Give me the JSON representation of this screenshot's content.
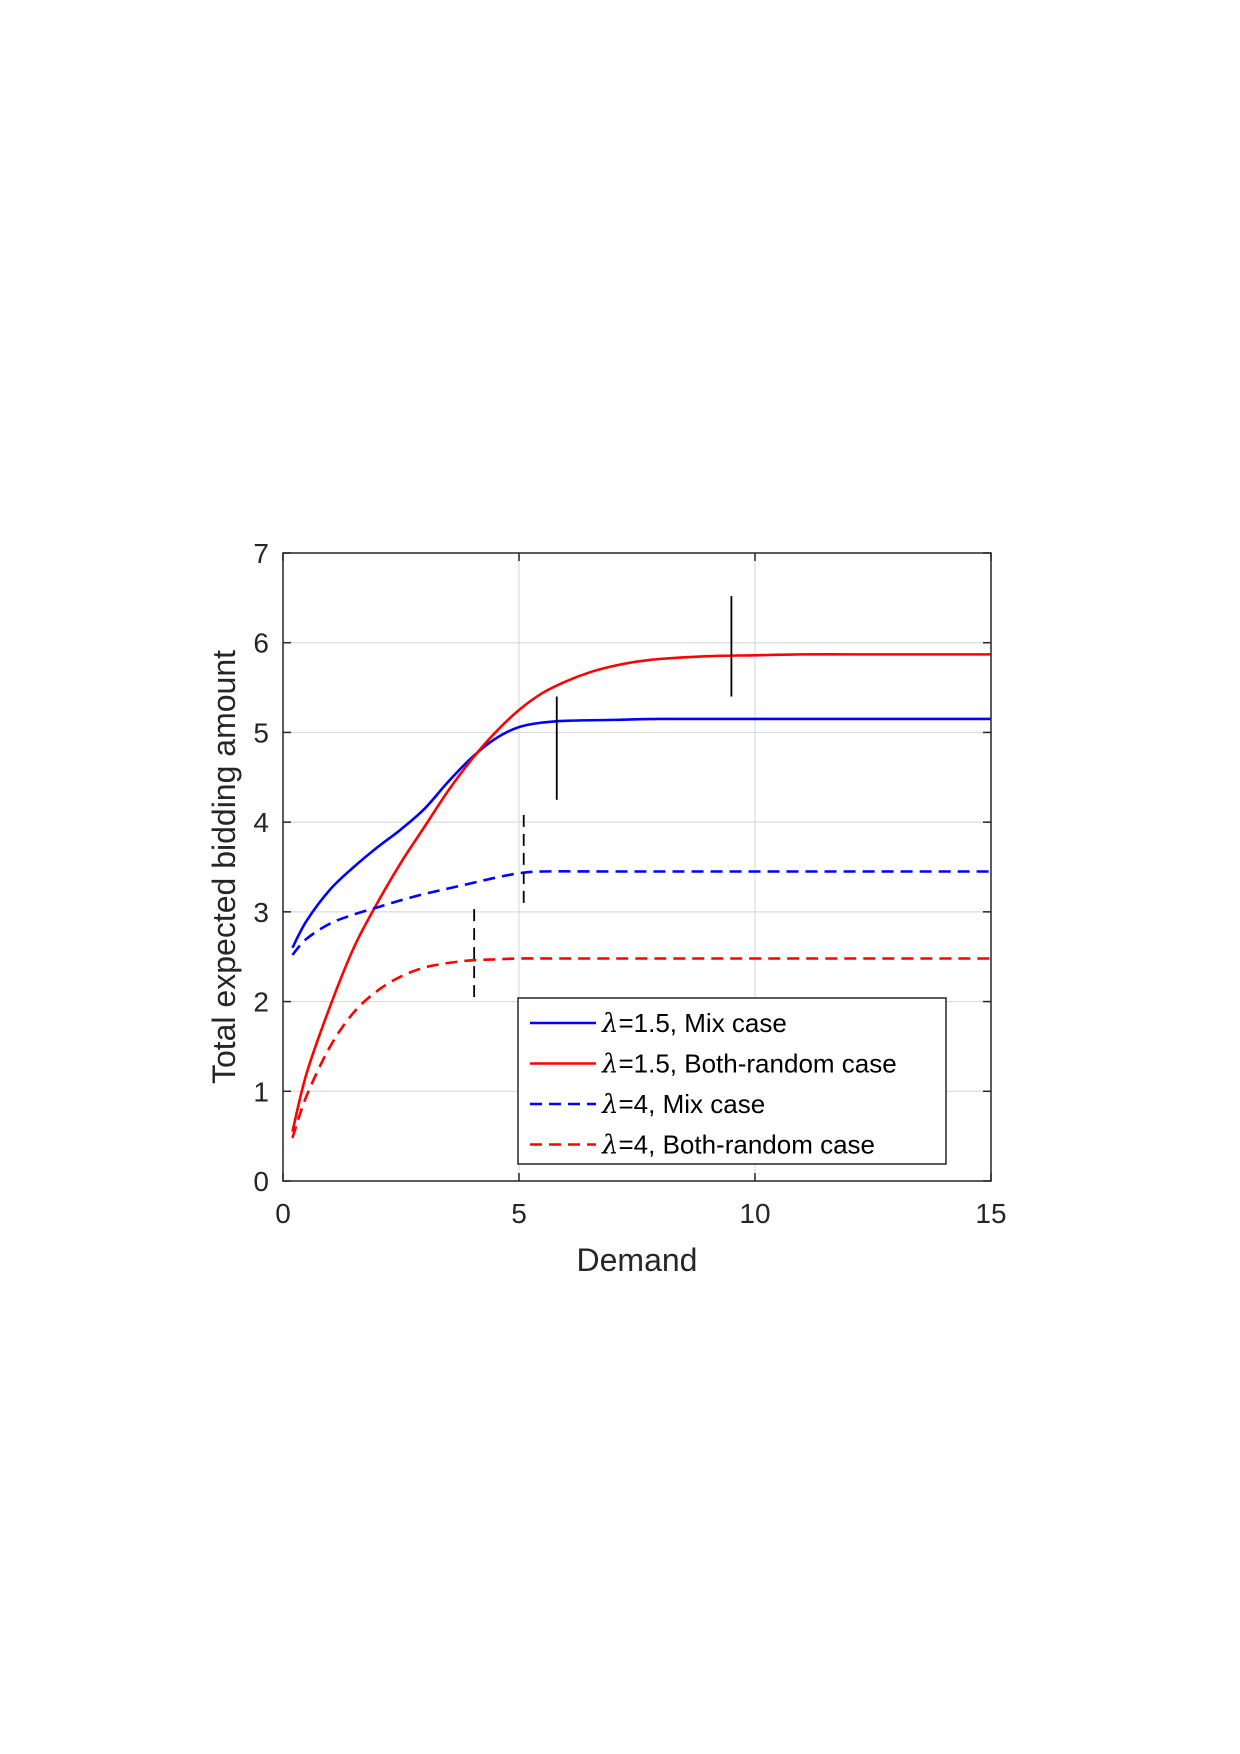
{
  "chart_data": {
    "type": "line",
    "title": "",
    "xlabel": "Demand",
    "ylabel": "Total expected bidding amount",
    "xlim": [
      0,
      15
    ],
    "ylim": [
      0,
      7
    ],
    "xticks": [
      0,
      5,
      10,
      15
    ],
    "yticks": [
      0,
      1,
      2,
      3,
      4,
      5,
      6,
      7
    ],
    "grid": true,
    "legend_position": "bottom-right",
    "series": [
      {
        "name": "λ=1.5,  Mix case",
        "lambda_symbol": "λ",
        "label_rest": "=1.5,  Mix case",
        "color": "#0000ff",
        "style": "solid",
        "x": [
          0.2,
          0.5,
          1.0,
          1.5,
          2.0,
          2.5,
          3.0,
          3.5,
          4.0,
          4.5,
          5.0,
          5.5,
          6.0,
          7.0,
          8.0,
          10.0,
          12.0,
          15.0
        ],
        "y": [
          2.6,
          2.9,
          3.25,
          3.5,
          3.72,
          3.92,
          4.15,
          4.45,
          4.72,
          4.93,
          5.06,
          5.11,
          5.13,
          5.14,
          5.15,
          5.15,
          5.15,
          5.15
        ]
      },
      {
        "name": "λ=1.5, Both-random case",
        "lambda_symbol": "λ",
        "label_rest": "=1.5, Both-random case",
        "color": "#ff0000",
        "style": "solid",
        "x": [
          0.2,
          0.5,
          1.0,
          1.5,
          2.0,
          2.5,
          3.0,
          3.5,
          4.0,
          4.5,
          5.0,
          5.5,
          6.0,
          6.5,
          7.0,
          7.5,
          8.0,
          9.0,
          10.0,
          11.0,
          12.0,
          13.0,
          15.0
        ],
        "y": [
          0.55,
          1.2,
          1.95,
          2.6,
          3.1,
          3.55,
          3.95,
          4.35,
          4.7,
          5.0,
          5.25,
          5.44,
          5.57,
          5.67,
          5.74,
          5.79,
          5.82,
          5.85,
          5.86,
          5.87,
          5.87,
          5.87,
          5.87
        ]
      },
      {
        "name": "λ=4, Mix case",
        "lambda_symbol": "λ",
        "label_rest": "=4, Mix case",
        "color": "#0000ff",
        "style": "dashed",
        "x": [
          0.2,
          0.5,
          1.0,
          1.5,
          2.0,
          2.5,
          3.0,
          3.5,
          4.0,
          4.5,
          5.0,
          5.5,
          7.0,
          10.0,
          15.0
        ],
        "y": [
          2.52,
          2.7,
          2.87,
          2.97,
          3.05,
          3.13,
          3.2,
          3.26,
          3.32,
          3.38,
          3.43,
          3.45,
          3.45,
          3.45,
          3.45
        ]
      },
      {
        "name": "λ=4, Both-random case",
        "lambda_symbol": "λ",
        "label_rest": "=4, Both-random case",
        "color": "#ff0000",
        "style": "dashed",
        "x": [
          0.2,
          0.5,
          1.0,
          1.5,
          2.0,
          2.5,
          3.0,
          3.5,
          4.0,
          4.5,
          5.0,
          6.0,
          8.0,
          10.0,
          15.0
        ],
        "y": [
          0.48,
          0.95,
          1.5,
          1.88,
          2.12,
          2.28,
          2.38,
          2.43,
          2.46,
          2.47,
          2.48,
          2.48,
          2.48,
          2.48,
          2.48
        ]
      }
    ],
    "markers": [
      {
        "x": 5.8,
        "y_range": [
          4.25,
          5.4
        ],
        "color": "#000000",
        "style": "solid"
      },
      {
        "x": 9.5,
        "y_range": [
          5.4,
          6.52
        ],
        "color": "#000000",
        "style": "solid"
      },
      {
        "x": 5.1,
        "y_range": [
          3.1,
          4.15
        ],
        "color": "#000000",
        "style": "dashed"
      },
      {
        "x": 4.05,
        "y_range": [
          2.05,
          3.08
        ],
        "color": "#000000",
        "style": "dashed"
      }
    ]
  }
}
